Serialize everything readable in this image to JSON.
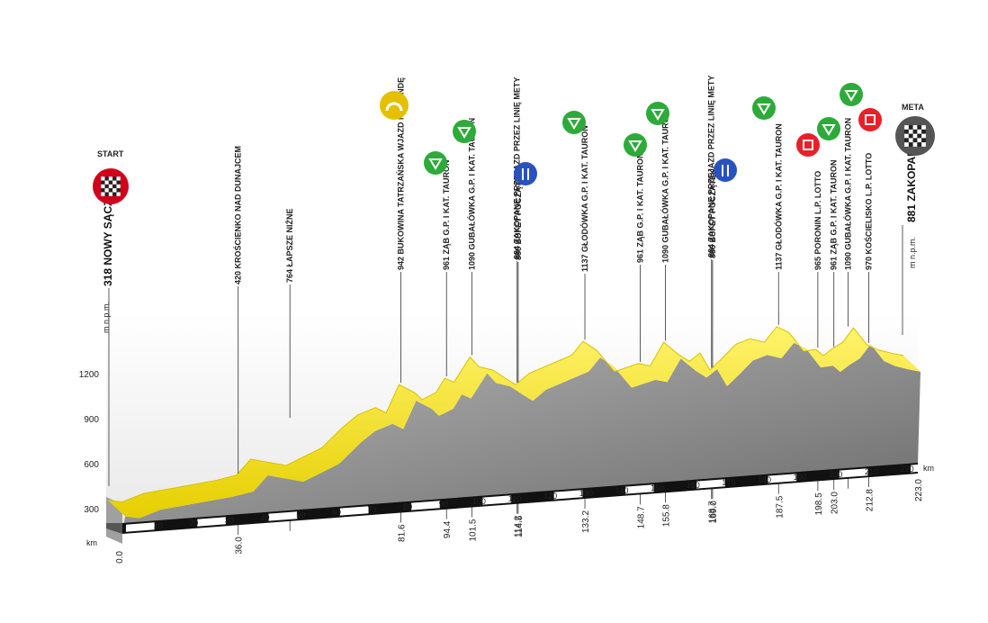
{
  "chart_data": {
    "type": "area",
    "title": "",
    "ylabel": "m n.p.m.",
    "xlabel": "km",
    "xlim": [
      0,
      223
    ],
    "ylim": [
      300,
      1200
    ],
    "y_ticks": [
      "300",
      "600",
      "900",
      "1200"
    ],
    "km_ticks": [
      "10",
      "20",
      "30",
      "40",
      "50",
      "60",
      "70",
      "80",
      "90",
      "100",
      "110",
      "120",
      "130",
      "140",
      "150",
      "160",
      "170",
      "180",
      "190",
      "200",
      "210",
      "220"
    ],
    "profile": {
      "x": [
        0,
        4,
        10,
        20,
        30,
        36,
        40,
        50,
        60,
        66,
        70,
        75,
        78,
        81.6,
        86,
        88,
        92,
        94.4,
        97,
        101.5,
        104,
        108,
        112,
        114.2,
        114.5,
        118,
        124,
        130,
        133.2,
        137,
        142,
        148.7,
        152,
        155.8,
        160,
        163,
        166,
        168.7,
        169,
        172,
        176,
        180,
        184,
        187.5,
        191,
        195,
        198.5,
        200.5,
        203,
        206,
        209,
        212.8,
        216,
        220,
        223
      ],
      "y": [
        318,
        300,
        345,
        370,
        395,
        420,
        520,
        460,
        560,
        690,
        760,
        800,
        760,
        942,
        880,
        830,
        870,
        961,
        930,
        1090,
        1020,
        990,
        920,
        884,
        886,
        950,
        1000,
        1050,
        1137,
        1070,
        920,
        961,
        940,
        1090,
        1000,
        950,
        1000,
        884,
        886,
        950,
        1040,
        1070,
        1040,
        1137,
        1090,
        960,
        965,
        920,
        961,
        1000,
        1090,
        970,
        930,
        900,
        881
      ]
    },
    "start": {
      "label": "START",
      "km": "0.0",
      "place": "318 NOWY SĄCZ"
    },
    "finish": {
      "label": "META",
      "km": "223.0",
      "place": "881 ZAKOPANE",
      "unit": "m n.p.m."
    },
    "waypoints": [
      {
        "km": "36.0",
        "text": "420 KROŚCIENKO NAD DUNAJCEM"
      },
      {
        "km": "",
        "text": "764 ŁAPSZE NIŻNE"
      },
      {
        "km": "81.6",
        "text": "942 BUKOWINA TATRZAŃSKA WJAZD NA RUNDĘ"
      },
      {
        "km": "94.4",
        "text": "961 ZĄB G.P. I KAT. TAURON"
      },
      {
        "km": "101.5",
        "text": "1090 GUBAŁÓWKA G.P. I KAT. TAURON"
      },
      {
        "km": "114.2",
        "text": "884 ZAKOPANE PRZEJAZD PRZEZ LINIĘ METY"
      },
      {
        "km": "114.5",
        "text": "886 BUFET POCZĄTEK"
      },
      {
        "km": "133.2",
        "text": "1137 GŁODÓWKA G.P. I KAT. TAURON"
      },
      {
        "km": "148.7",
        "text": "961 ZĄB G.P. I KAT. TAURON"
      },
      {
        "km": "155.8",
        "text": "1090 GUBAŁÓWKA G.P. I KAT. TAURON"
      },
      {
        "km": "168.7",
        "text": "884 ZAKOPANE PRZEJAZD PRZEZ LINIĘ METY"
      },
      {
        "km": "169.0",
        "text": "886 BUFET POCZĄTEK"
      },
      {
        "km": "187.5",
        "text": "1137 GŁODÓWKA G.P. I KAT. TAURON"
      },
      {
        "km": "198.5",
        "text": "965 PORONIN L.P. LOTTO"
      },
      {
        "km": "203.0",
        "text": "961 ZĄB G.P. I KAT. TAURON"
      },
      {
        "km": "",
        "text": "1090 GUBAŁÓWKA G.P. I KAT. TAURON"
      },
      {
        "km": "212.8",
        "text": "970 KOŚCIELISKO L.P. LOTTO"
      }
    ],
    "icons": [
      {
        "name": "start-flag-icon",
        "color": "#d0021b"
      },
      {
        "name": "circuit-entry-icon",
        "color": "#e5c000"
      },
      {
        "name": "mountain-climb-icon",
        "color": "#2eaa3a"
      },
      {
        "name": "feed-zone-icon",
        "color": "#2a52be"
      },
      {
        "name": "intermediate-sprint-icon",
        "color": "#e8202a"
      },
      {
        "name": "finish-flag-icon",
        "color": "#555555"
      }
    ],
    "colors": {
      "road": "#f5e000",
      "terrain": "#8a8a8a",
      "axis_band": "#111111"
    }
  }
}
